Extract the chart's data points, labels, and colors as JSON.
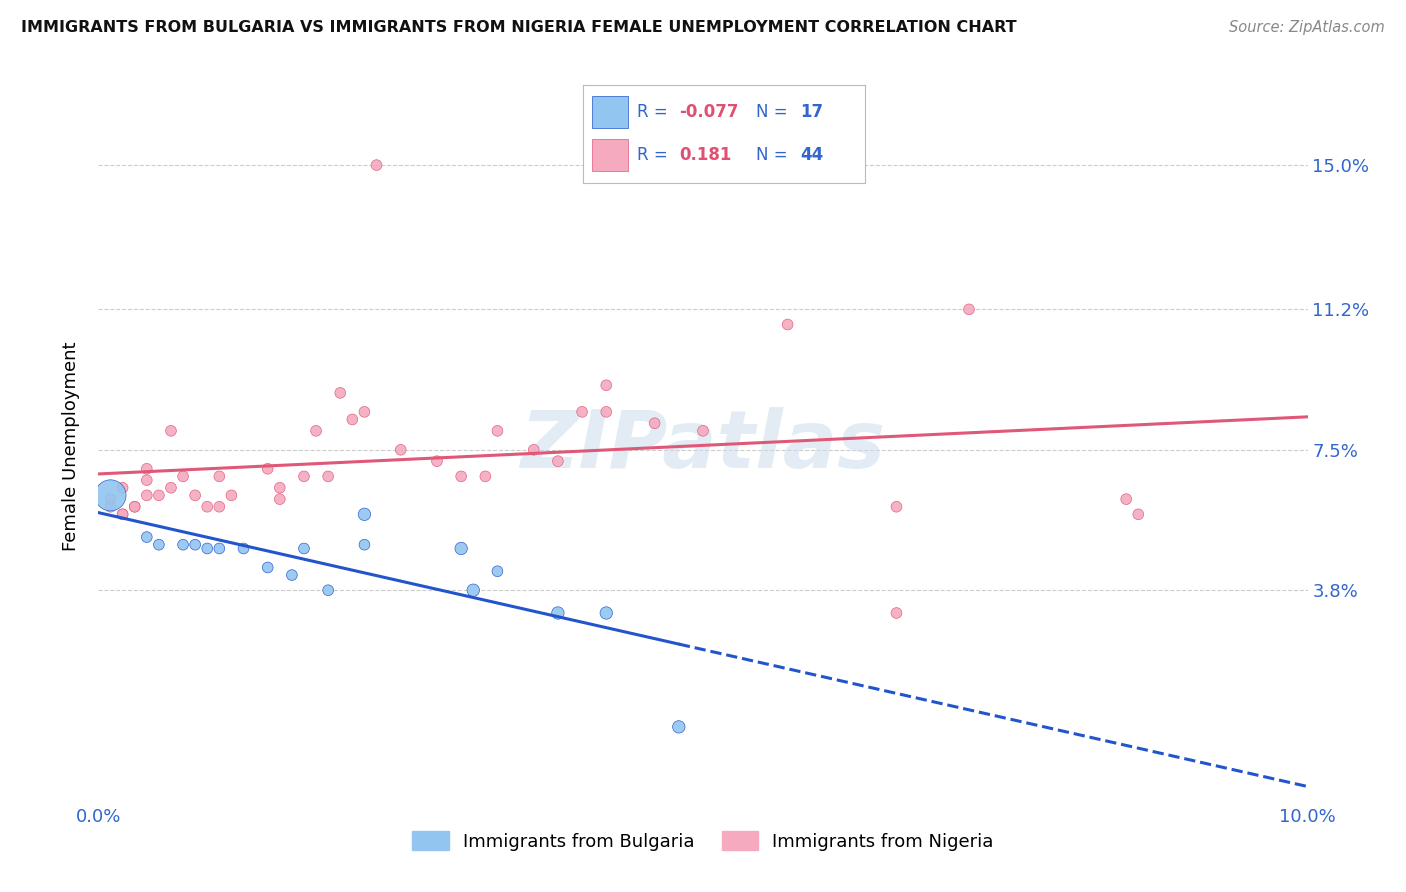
{
  "title": "IMMIGRANTS FROM BULGARIA VS IMMIGRANTS FROM NIGERIA FEMALE UNEMPLOYMENT CORRELATION CHART",
  "source": "Source: ZipAtlas.com",
  "ylabel": "Female Unemployment",
  "yticks": [
    0.038,
    0.075,
    0.112,
    0.15
  ],
  "ytick_labels": [
    "3.8%",
    "7.5%",
    "11.2%",
    "15.0%"
  ],
  "xlim": [
    0.0,
    0.1
  ],
  "ylim": [
    -0.018,
    0.17
  ],
  "color_bulgaria": "#92C5F0",
  "color_nigeria": "#F5AABF",
  "trendline_bulgaria_color": "#2255CC",
  "trendline_nigeria_color": "#E05878",
  "watermark": "ZIPatlas",
  "bg_color": "#FFFFFF",
  "legend_bulgaria": "Immigrants from Bulgaria",
  "legend_nigeria": "Immigrants from Nigeria",
  "bulgaria_points": [
    [
      0.001,
      0.063
    ],
    [
      0.004,
      0.052
    ],
    [
      0.005,
      0.05
    ],
    [
      0.007,
      0.05
    ],
    [
      0.008,
      0.05
    ],
    [
      0.009,
      0.049
    ],
    [
      0.01,
      0.049
    ],
    [
      0.012,
      0.049
    ],
    [
      0.014,
      0.044
    ],
    [
      0.016,
      0.042
    ],
    [
      0.017,
      0.049
    ],
    [
      0.019,
      0.038
    ],
    [
      0.022,
      0.05
    ],
    [
      0.022,
      0.058
    ],
    [
      0.03,
      0.049
    ],
    [
      0.031,
      0.038
    ],
    [
      0.033,
      0.043
    ],
    [
      0.038,
      0.032
    ],
    [
      0.042,
      0.032
    ],
    [
      0.048,
      0.002
    ]
  ],
  "bulgaria_sizes": [
    500,
    60,
    60,
    60,
    60,
    60,
    60,
    60,
    60,
    60,
    60,
    60,
    60,
    80,
    80,
    80,
    60,
    80,
    80,
    80
  ],
  "nigeria_points": [
    [
      0.001,
      0.062
    ],
    [
      0.001,
      0.06
    ],
    [
      0.002,
      0.058
    ],
    [
      0.002,
      0.065
    ],
    [
      0.002,
      0.058
    ],
    [
      0.003,
      0.06
    ],
    [
      0.003,
      0.06
    ],
    [
      0.004,
      0.063
    ],
    [
      0.004,
      0.067
    ],
    [
      0.004,
      0.07
    ],
    [
      0.005,
      0.063
    ],
    [
      0.006,
      0.065
    ],
    [
      0.006,
      0.08
    ],
    [
      0.007,
      0.068
    ],
    [
      0.008,
      0.063
    ],
    [
      0.009,
      0.06
    ],
    [
      0.01,
      0.06
    ],
    [
      0.01,
      0.068
    ],
    [
      0.011,
      0.063
    ],
    [
      0.014,
      0.07
    ],
    [
      0.015,
      0.065
    ],
    [
      0.015,
      0.062
    ],
    [
      0.017,
      0.068
    ],
    [
      0.018,
      0.08
    ],
    [
      0.019,
      0.068
    ],
    [
      0.02,
      0.09
    ],
    [
      0.021,
      0.083
    ],
    [
      0.022,
      0.085
    ],
    [
      0.023,
      0.15
    ],
    [
      0.025,
      0.075
    ],
    [
      0.028,
      0.072
    ],
    [
      0.03,
      0.068
    ],
    [
      0.032,
      0.068
    ],
    [
      0.033,
      0.08
    ],
    [
      0.036,
      0.075
    ],
    [
      0.038,
      0.072
    ],
    [
      0.04,
      0.085
    ],
    [
      0.042,
      0.092
    ],
    [
      0.042,
      0.085
    ],
    [
      0.046,
      0.082
    ],
    [
      0.05,
      0.08
    ],
    [
      0.057,
      0.108
    ],
    [
      0.066,
      0.032
    ],
    [
      0.066,
      0.06
    ],
    [
      0.072,
      0.112
    ],
    [
      0.085,
      0.062
    ],
    [
      0.086,
      0.058
    ]
  ],
  "nigeria_sizes": [
    60,
    60,
    60,
    60,
    60,
    60,
    60,
    60,
    60,
    60,
    60,
    60,
    60,
    60,
    60,
    60,
    60,
    60,
    60,
    60,
    60,
    60,
    60,
    60,
    60,
    60,
    60,
    60,
    60,
    60,
    60,
    60,
    60,
    60,
    60,
    60,
    60,
    60,
    60,
    60,
    60,
    60,
    60,
    60,
    60,
    60,
    60
  ]
}
